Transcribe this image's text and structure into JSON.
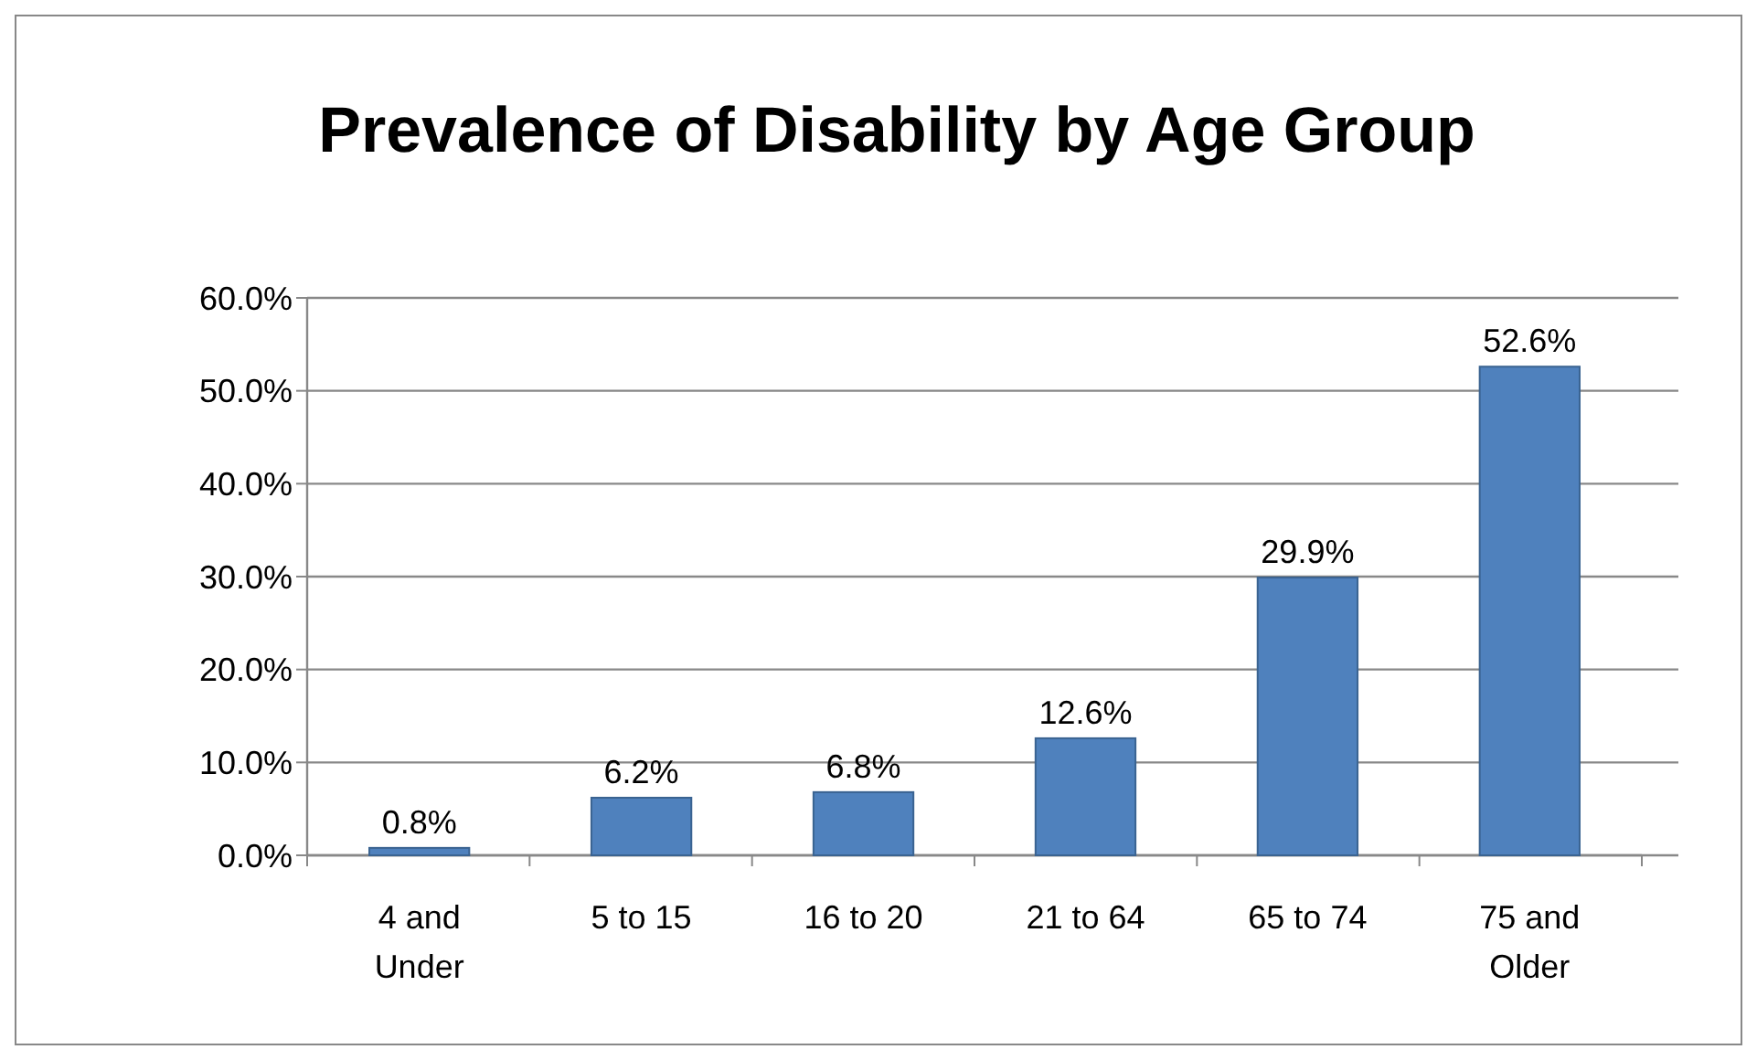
{
  "chart_data": {
    "type": "bar",
    "title": "Prevalence of Disability by Age Group",
    "categories": [
      "4 and Under",
      "5 to 15",
      "16 to 20",
      "21 to 64",
      "65 to 74",
      "75 and Older"
    ],
    "values": [
      0.8,
      6.2,
      6.8,
      12.6,
      29.9,
      52.6
    ],
    "color": "#4f81bd",
    "value_labels": [
      "0.8%",
      "6.2%",
      "6.8%",
      "12.6%",
      "29.9%",
      "52.6%"
    ],
    "ylim": [
      0,
      60
    ],
    "yticks": [
      {
        "value": 0,
        "label": "0.0%"
      },
      {
        "value": 10,
        "label": "10.0%"
      },
      {
        "value": 20,
        "label": "20.0%"
      },
      {
        "value": 30,
        "label": "30.0%"
      },
      {
        "value": 40,
        "label": "40.0%"
      },
      {
        "value": 50,
        "label": "50.0%"
      },
      {
        "value": 60,
        "label": "60.0%"
      }
    ],
    "grid": "y"
  }
}
